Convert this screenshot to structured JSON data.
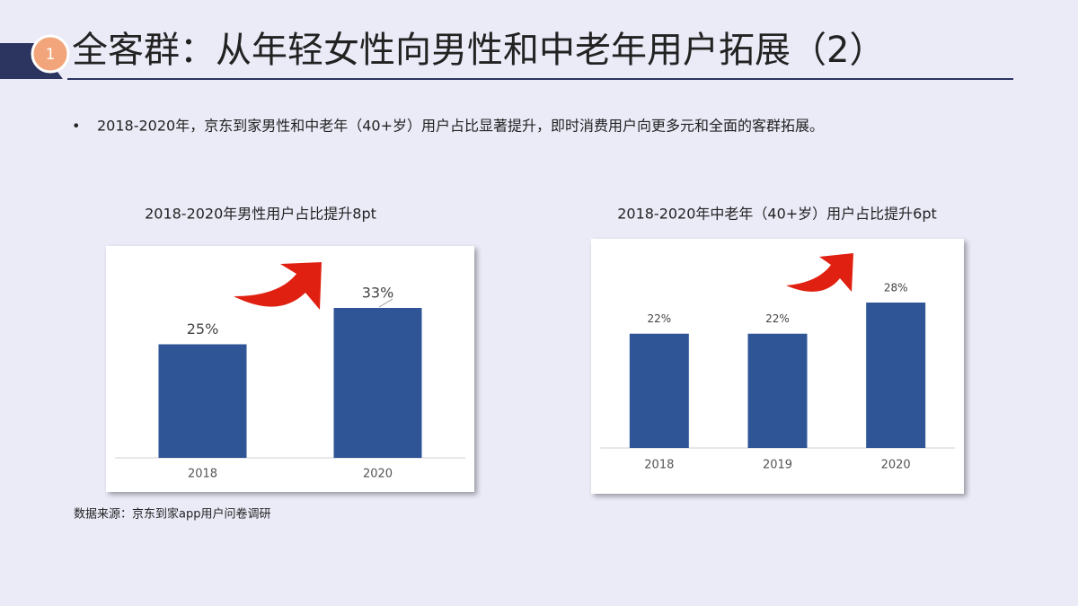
{
  "header": {
    "number": "1",
    "title": "全客群：从年轻女性向男性和中老年用户拓展（2）"
  },
  "bullet": "2018-2020年，京东到家男性和中老年（40+岁）用户占比显著提升，即时消费用户向更多元和全面的客群拓展。",
  "source": "数据来源：京东到家app用户问卷调研",
  "chart_data": [
    {
      "type": "bar",
      "title": "2018-2020年男性用户占比提升8pt",
      "categories": [
        "2018",
        "2020"
      ],
      "values": [
        25,
        33
      ],
      "value_labels": [
        "25%",
        "33%"
      ],
      "color": "#2f5597"
    },
    {
      "type": "bar",
      "title": "2018-2020年中老年（40+岁）用户占比提升6pt",
      "categories": [
        "2018",
        "2019",
        "2020"
      ],
      "values": [
        22,
        22,
        28
      ],
      "value_labels": [
        "22%",
        "22%",
        "28%"
      ],
      "color": "#2f5597"
    }
  ]
}
